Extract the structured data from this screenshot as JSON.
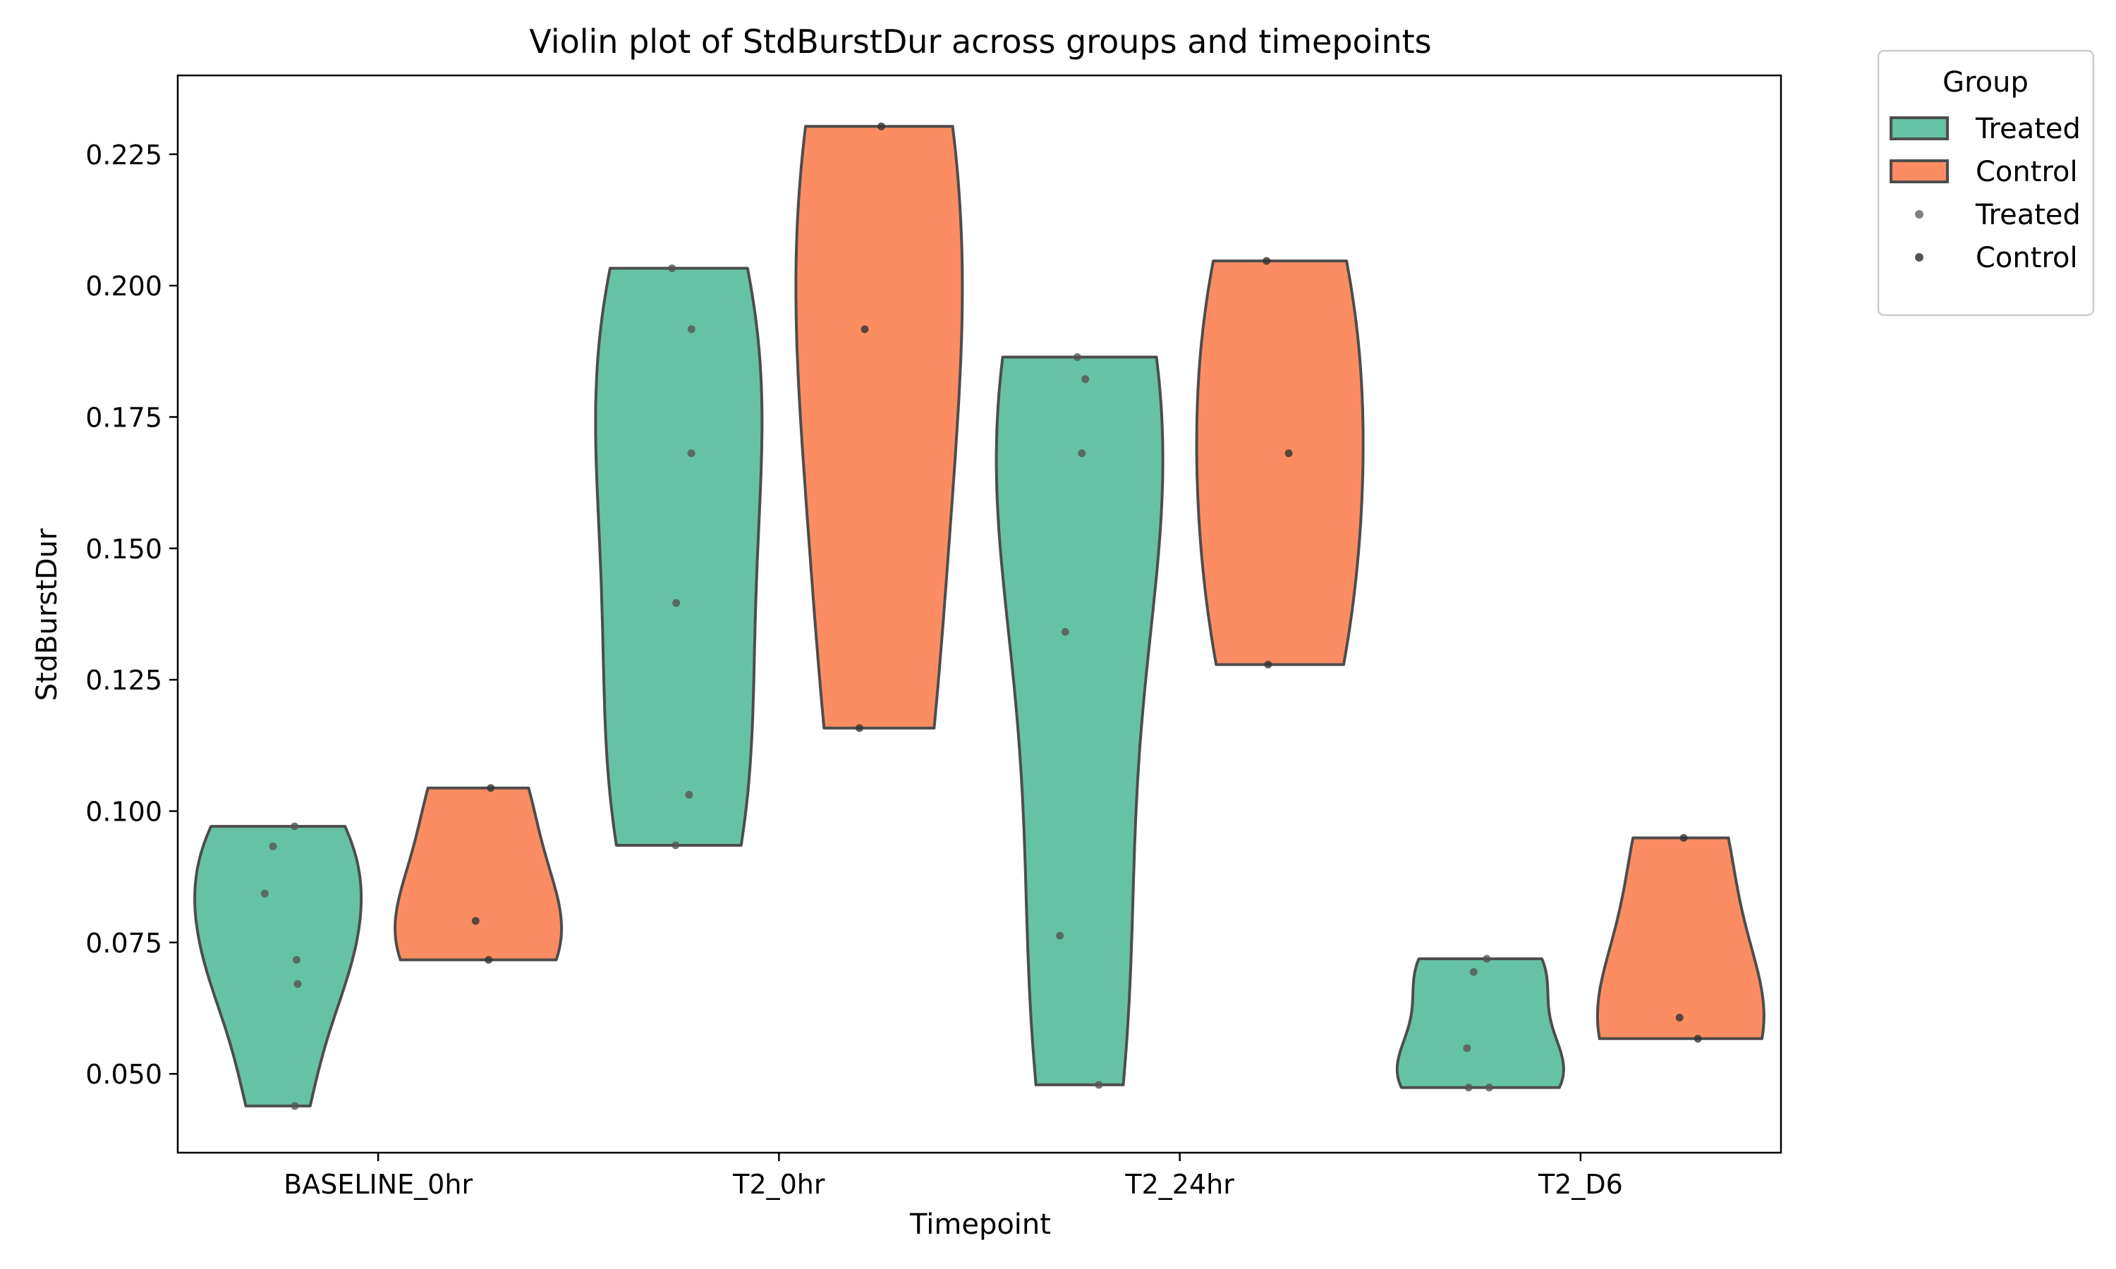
{
  "chart_data": {
    "type": "violin",
    "title": "Violin plot of StdBurstDur across groups and timepoints",
    "xlabel": "Timepoint",
    "ylabel": "StdBurstDur",
    "ylim": [
      0.035,
      0.24
    ],
    "yticks": [
      0.05,
      0.075,
      0.1,
      0.125,
      0.15,
      0.175,
      0.2,
      0.225
    ],
    "categories": [
      "BASELINE_0hr",
      "T2_0hr",
      "T2_24hr",
      "T2_D6"
    ],
    "legend": {
      "title": "Group",
      "position": "outside-top-right",
      "entries": [
        {
          "label": "Treated",
          "kind": "patch",
          "color": "#66c2a5"
        },
        {
          "label": "Control",
          "kind": "patch",
          "color": "#fc8d62"
        },
        {
          "label": "Treated",
          "kind": "dot",
          "color": "#808080"
        },
        {
          "label": "Control",
          "kind": "dot",
          "color": "#555555"
        }
      ]
    },
    "grid": false,
    "series": [
      {
        "name": "Treated",
        "color": "#66c2a5",
        "points": [
          [
            0.0971,
            0.0933,
            0.0843,
            0.0717,
            0.0671,
            0.0439
          ],
          [
            0.2033,
            0.1917,
            0.1681,
            0.1396,
            0.1031,
            0.0935
          ],
          [
            0.1864,
            0.1822,
            0.1681,
            0.1341,
            0.0763,
            0.0479
          ],
          [
            0.0719,
            0.0694,
            0.0549,
            0.0474,
            0.0474
          ]
        ]
      },
      {
        "name": "Control",
        "color": "#fc8d62",
        "points": [
          [
            0.1044,
            0.0791,
            0.0717
          ],
          [
            0.2303,
            0.1917,
            0.1158
          ],
          [
            0.2047,
            0.1681,
            0.1279
          ],
          [
            0.0949,
            0.0607,
            0.0567
          ]
        ]
      }
    ]
  }
}
